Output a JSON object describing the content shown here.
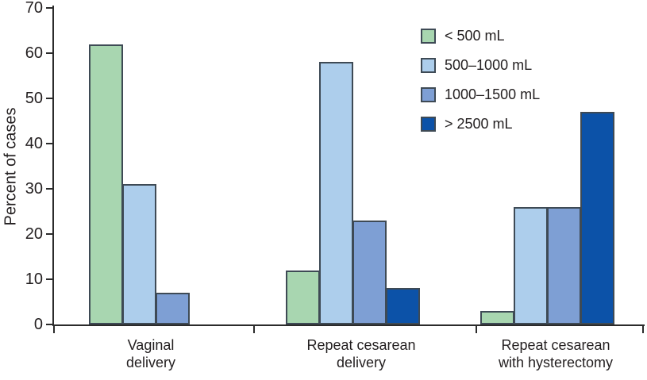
{
  "figure": {
    "background": "#ffffff",
    "text_color": "#231f20",
    "axis_color": "#2b2b2b",
    "bar_border_color": "#3e4a55"
  },
  "chart_data": {
    "type": "bar",
    "title": "",
    "xlabel": "",
    "ylabel": "Percent of cases",
    "ylim": [
      0,
      70
    ],
    "yticks": [
      0,
      10,
      20,
      30,
      40,
      50,
      60,
      70
    ],
    "grid": false,
    "legend_position": "upper-right-inside",
    "categories": [
      "Vaginal delivery",
      "Repeat cesarean delivery",
      "Repeat cesarean with hysterectomy"
    ],
    "category_lines": [
      [
        "Vaginal",
        "delivery"
      ],
      [
        "Repeat cesarean",
        "delivery"
      ],
      [
        "Repeat cesarean",
        "with hysterectomy"
      ]
    ],
    "series": [
      {
        "name": "< 500 mL",
        "color": "#a8d6b0",
        "values": [
          62,
          12,
          3
        ]
      },
      {
        "name": "500–1000 mL",
        "color": "#adceec",
        "values": [
          31,
          58,
          26
        ]
      },
      {
        "name": "1000–1500 mL",
        "color": "#7e9fd4",
        "values": [
          7,
          23,
          26
        ]
      },
      {
        "name": "> 2500 mL",
        "color": "#0c52a8",
        "values": [
          null,
          8,
          47
        ]
      }
    ]
  }
}
